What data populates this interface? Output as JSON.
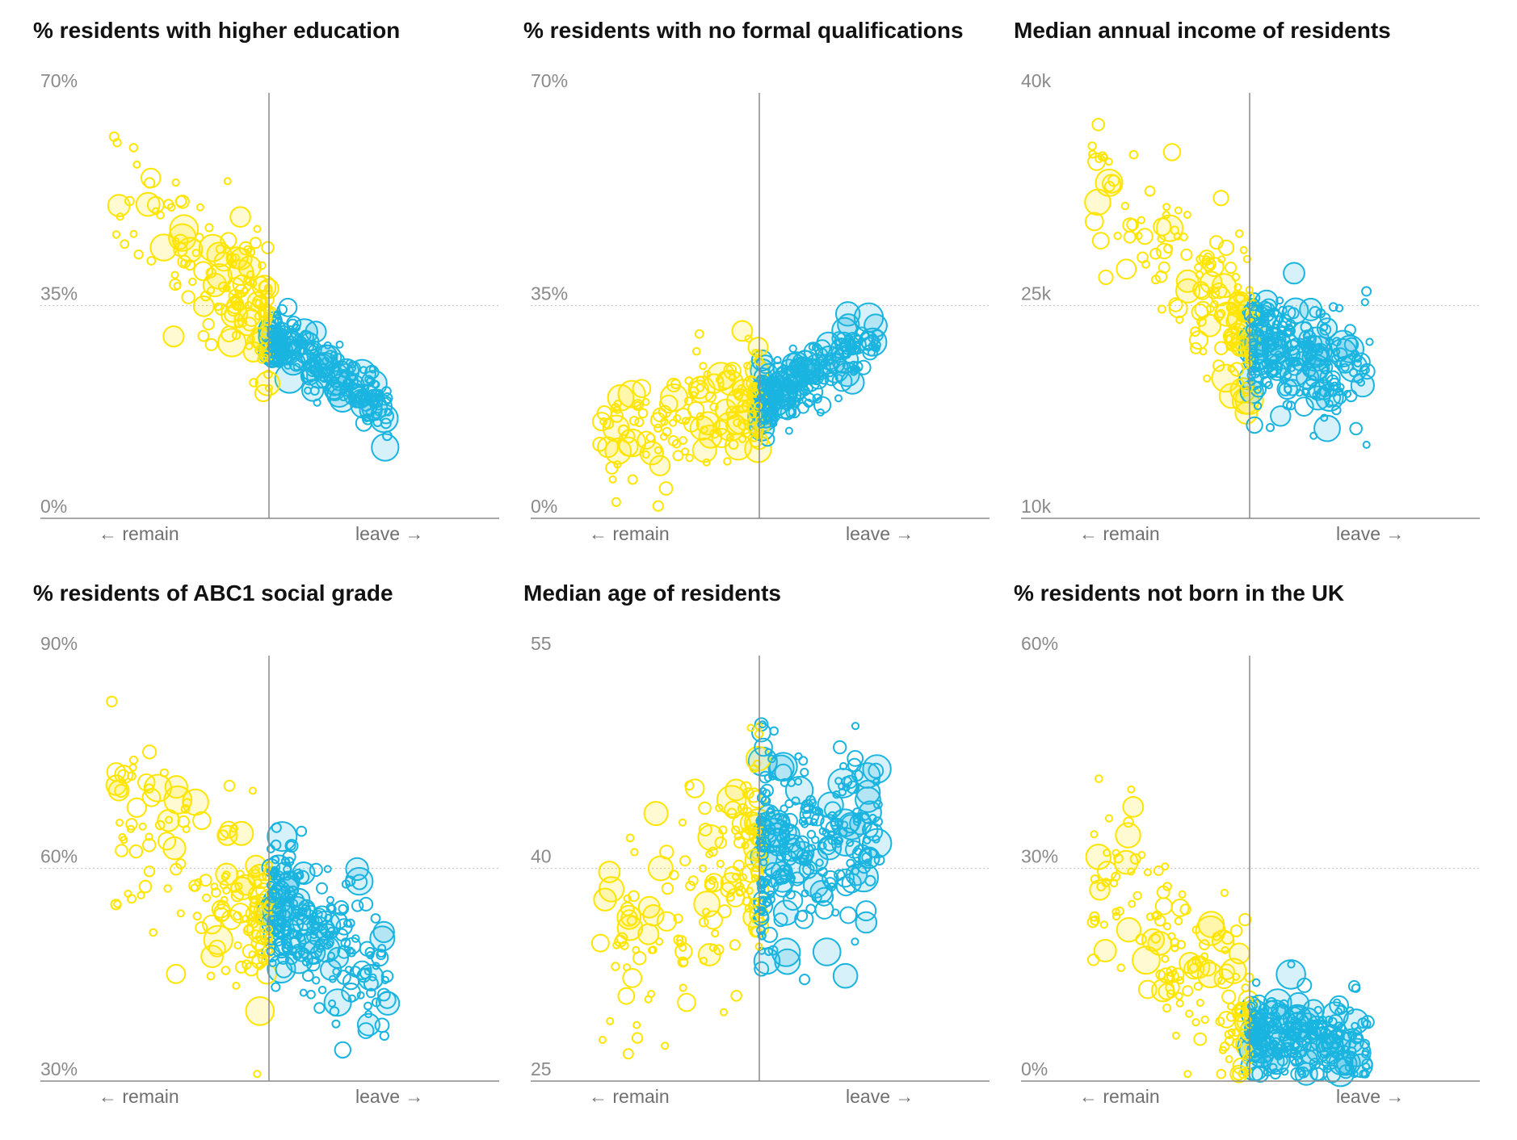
{
  "colors": {
    "remain": "#ffe500",
    "leave": "#1ab4e0",
    "axis": "#8a8a8a",
    "grid": "#c8c8c8"
  },
  "chart_data": [
    {
      "type": "scatter",
      "id": "higher-education",
      "title": "% residents with higher education",
      "ylim": [
        0,
        70
      ],
      "yticks": [
        "0%",
        "35%",
        "70%"
      ],
      "xlabel_left": "← remain",
      "xlabel_right": "leave →",
      "grid_y": 35,
      "seed": 11,
      "n_remain": 150,
      "n_leave": 230,
      "remain_trend": [
        [
          25,
          49
        ],
        [
          50,
          32
        ]
      ],
      "leave_trend": [
        [
          50,
          30
        ],
        [
          82,
          15
        ]
      ],
      "remain_sd": 5.5,
      "leave_sd": 2.5
    },
    {
      "type": "scatter",
      "id": "no-qualifications",
      "title": "% residents with no formal qualifications",
      "ylim": [
        0,
        70
      ],
      "yticks": [
        "0%",
        "35%",
        "70%"
      ],
      "xlabel_left": "← remain",
      "xlabel_right": "leave →",
      "grid_y": 35,
      "seed": 23,
      "n_remain": 150,
      "n_leave": 230,
      "remain_trend": [
        [
          25,
          14
        ],
        [
          50,
          21
        ]
      ],
      "leave_trend": [
        [
          50,
          19
        ],
        [
          82,
          32
        ]
      ],
      "remain_sd": 4.5,
      "leave_sd": 2.5
    },
    {
      "type": "scatter",
      "id": "median-income",
      "title": "Median annual income of residents",
      "ylim": [
        10,
        40
      ],
      "yticks": [
        "10k",
        "25k",
        "40k"
      ],
      "xlabel_left": "← remain",
      "xlabel_right": "leave →",
      "grid_y": 25,
      "seed": 37,
      "n_remain": 140,
      "n_leave": 230,
      "remain_trend": [
        [
          25,
          31
        ],
        [
          50,
          22
        ]
      ],
      "leave_trend": [
        [
          50,
          22.5
        ],
        [
          82,
          20
        ]
      ],
      "remain_sd": 3.0,
      "leave_sd": 2.0
    },
    {
      "type": "scatter",
      "id": "abc1-grade",
      "title": "% residents of ABC1 social grade",
      "ylim": [
        30,
        90
      ],
      "yticks": [
        "30%",
        "60%",
        "90%"
      ],
      "xlabel_left": "← remain",
      "xlabel_right": "leave →",
      "grid_y": 60,
      "seed": 41,
      "n_remain": 150,
      "n_leave": 230,
      "remain_trend": [
        [
          25,
          64
        ],
        [
          50,
          52
        ]
      ],
      "leave_trend": [
        [
          50,
          55
        ],
        [
          82,
          42
        ]
      ],
      "remain_sd": 6.5,
      "leave_sd": 5.0
    },
    {
      "type": "scatter",
      "id": "median-age",
      "title": "Median age of residents",
      "ylim": [
        25,
        55
      ],
      "yticks": [
        "25",
        "40",
        "55"
      ],
      "xlabel_left": "← remain",
      "xlabel_right": "leave →",
      "grid_y": 40,
      "seed": 53,
      "n_remain": 150,
      "n_leave": 260,
      "remain_trend": [
        [
          25,
          35
        ],
        [
          50,
          41
        ]
      ],
      "leave_trend": [
        [
          50,
          41
        ],
        [
          82,
          44
        ]
      ],
      "remain_sd": 4.0,
      "leave_sd": 3.5
    },
    {
      "type": "scatter",
      "id": "not-born-uk",
      "title": "% residents not born in the UK",
      "ylim": [
        0,
        60
      ],
      "yticks": [
        "0%",
        "30%",
        "60%"
      ],
      "xlabel_left": "← remain",
      "xlabel_right": "leave →",
      "grid_y": 30,
      "seed": 67,
      "n_remain": 150,
      "n_leave": 240,
      "remain_trend": [
        [
          25,
          24
        ],
        [
          50,
          8
        ]
      ],
      "leave_trend": [
        [
          50,
          7
        ],
        [
          82,
          5
        ]
      ],
      "remain_sd": 6.0,
      "leave_sd": 3.0
    }
  ]
}
